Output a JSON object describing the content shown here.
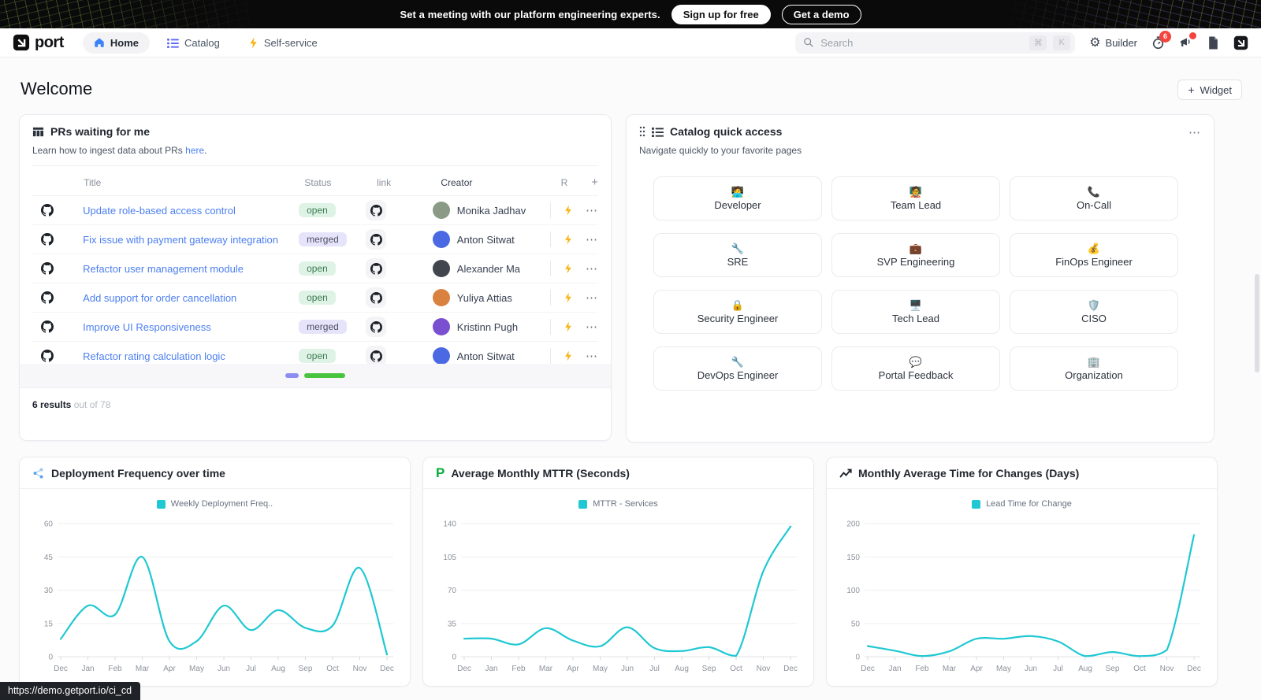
{
  "banner": {
    "text": "Set a meeting with our platform engineering experts.",
    "signup_label": "Sign up for free",
    "demo_label": "Get a demo"
  },
  "nav": {
    "brand": "port",
    "tabs": [
      {
        "label": "Home"
      },
      {
        "label": "Catalog"
      },
      {
        "label": "Self-service"
      }
    ],
    "search": {
      "placeholder": "Search",
      "key1": "⌘",
      "key2": "K"
    },
    "builder_label": "Builder",
    "history_badge": "6"
  },
  "page": {
    "title": "Welcome",
    "widget_plus": "+",
    "widget_label": "Widget",
    "status_url": "https://demo.getport.io/ci_cd"
  },
  "prs_card": {
    "title": "PRs waiting for me",
    "subtitle_prefix": "Learn how to ingest data about PRs ",
    "subtitle_link": "here",
    "subtitle_suffix": ".",
    "columns": {
      "title": "Title",
      "status": "Status",
      "link": "link",
      "creator": "Creator",
      "r": "R",
      "add": "+"
    },
    "rows": [
      {
        "title": "Update role-based access control",
        "status": "open",
        "creator": "Monika Jadhav",
        "avatar_color": "#8a9a86"
      },
      {
        "title": "Fix issue with payment gateway integration",
        "status": "merged",
        "creator": "Anton Sitwat",
        "avatar_color": "#4a69e2"
      },
      {
        "title": "Refactor user management module",
        "status": "open",
        "creator": "Alexander Ma",
        "avatar_color": "#41454e"
      },
      {
        "title": "Add support for order cancellation",
        "status": "open",
        "creator": "Yuliya Attias",
        "avatar_color": "#d9813f"
      },
      {
        "title": "Improve UI Responsiveness",
        "status": "merged",
        "creator": "Kristinn Pugh",
        "avatar_color": "#7a4fd0"
      },
      {
        "title": "Refactor rating calculation logic",
        "status": "open",
        "creator": "Anton Sitwat",
        "avatar_color": "#4a69e2"
      }
    ],
    "menu_dots": "⋯",
    "results_bold": "6 results",
    "results_rest": " out of 78"
  },
  "catalog_card": {
    "title": "Catalog quick access",
    "subtitle": "Navigate quickly to your favorite pages",
    "menu_dots": "⋯",
    "tiles": [
      {
        "icon": "🧑‍💻",
        "icon_name": "developer-icon",
        "label": "Developer"
      },
      {
        "icon": "🧑‍🏫",
        "icon_name": "teacher-icon",
        "label": "Team Lead"
      },
      {
        "icon": "📞",
        "icon_name": "phone-icon",
        "label": "On-Call"
      },
      {
        "icon": "🔧",
        "icon_name": "wrench-icon",
        "label": "SRE"
      },
      {
        "icon": "💼",
        "icon_name": "briefcase-icon",
        "label": "SVP Engineering"
      },
      {
        "icon": "💰",
        "icon_name": "money-bag-icon",
        "label": "FinOps Engineer"
      },
      {
        "icon": "🔒",
        "icon_name": "lock-icon",
        "label": "Security Engineer"
      },
      {
        "icon": "🖥️",
        "icon_name": "monitor-icon",
        "label": "Tech Lead"
      },
      {
        "icon": "🛡️",
        "icon_name": "shield-icon",
        "label": "CISO"
      },
      {
        "icon": "🔧",
        "icon_name": "wrench-icon",
        "label": "DevOps Engineer"
      },
      {
        "icon": "💬",
        "icon_name": "speech-balloon-icon",
        "label": "Portal Feedback"
      },
      {
        "icon": "🏢",
        "icon_name": "office-building-icon",
        "label": "Organization"
      }
    ]
  },
  "chart_data": [
    {
      "type": "line",
      "title": "Deployment Frequency over time",
      "legend": "Weekly Deployment Freq..",
      "x": [
        "Dec",
        "Jan",
        "Feb",
        "Mar",
        "Apr",
        "May",
        "Jun",
        "Jul",
        "Aug",
        "Sep",
        "Oct",
        "Nov",
        "Dec"
      ],
      "values": [
        8,
        23,
        19,
        45,
        7,
        7,
        23,
        12,
        21,
        13,
        14,
        40,
        1
      ],
      "yticks": [
        0,
        15,
        30,
        45,
        60
      ],
      "ylim": [
        0,
        60
      ],
      "color": "#1fc8d2",
      "grid": true,
      "legend_position": "top"
    },
    {
      "type": "line",
      "title": "Average Monthly MTTR (Seconds)",
      "legend": "MTTR - Services",
      "x": [
        "Dec",
        "Jan",
        "Feb",
        "Mar",
        "Apr",
        "May",
        "Jun",
        "Jul",
        "Aug",
        "Sep",
        "Oct",
        "Nov",
        "Dec"
      ],
      "values": [
        19,
        19,
        13,
        30,
        17,
        11,
        31,
        9,
        6,
        10,
        1,
        90,
        137
      ],
      "yticks": [
        0,
        35,
        70,
        105,
        140
      ],
      "ylim": [
        0,
        140
      ],
      "color": "#1fc8d2",
      "grid": true,
      "legend_position": "top"
    },
    {
      "type": "line",
      "title": "Monthly Average Time for Changes (Days)",
      "legend": "Lead Time for Change",
      "x": [
        "Dec",
        "Jan",
        "Feb",
        "Mar",
        "Apr",
        "May",
        "Jun",
        "Jul",
        "Aug",
        "Sep",
        "Oct",
        "Nov",
        "Dec"
      ],
      "values": [
        16,
        9,
        1,
        8,
        27,
        27,
        31,
        23,
        1,
        7,
        1,
        10,
        183
      ],
      "yticks": [
        0,
        50,
        100,
        150,
        200
      ],
      "ylim": [
        0,
        200
      ],
      "color": "#1fc8d2",
      "grid": true,
      "legend_position": "top"
    }
  ]
}
